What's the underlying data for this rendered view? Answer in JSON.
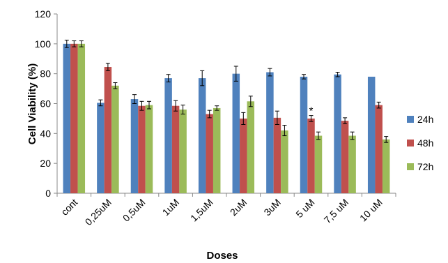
{
  "chart_data": {
    "type": "bar",
    "title": "",
    "xlabel": "Doses",
    "ylabel": "Cell Viability (%)",
    "ylim": [
      0,
      120
    ],
    "yticks": [
      0,
      20,
      40,
      60,
      80,
      100,
      120
    ],
    "grid": false,
    "legend_position": "right",
    "categories": [
      "cont",
      "0,25uM",
      "0,5uM",
      "1uM",
      "1,5uM",
      "2uM",
      "3uM",
      "5 uM",
      "7,5 uM",
      "10 uM"
    ],
    "series": [
      {
        "name": "24h",
        "color": "#4f81bd",
        "values": [
          100,
          60.5,
          63,
          77,
          77,
          80,
          81,
          78,
          79.5,
          78
        ],
        "errors": [
          2.5,
          2,
          3,
          2.5,
          5,
          5,
          2.5,
          1.5,
          1.5,
          null
        ]
      },
      {
        "name": "48h",
        "color": "#c0504d",
        "values": [
          100,
          84.5,
          58.5,
          58.5,
          53,
          50,
          50.5,
          50,
          48.5,
          59
        ],
        "errors": [
          2,
          2.5,
          3,
          3.5,
          2.5,
          4,
          4.5,
          2,
          2,
          2
        ]
      },
      {
        "name": "72h",
        "color": "#9bbb59",
        "values": [
          100,
          72,
          59,
          56,
          57,
          61.5,
          42,
          38.5,
          38.5,
          36
        ],
        "errors": [
          2,
          2,
          2.5,
          3,
          1.5,
          3.5,
          3.5,
          2.5,
          2.5,
          2
        ]
      }
    ],
    "annotations": [
      {
        "text": "*",
        "category": "5 uM",
        "series": "48h"
      }
    ]
  }
}
